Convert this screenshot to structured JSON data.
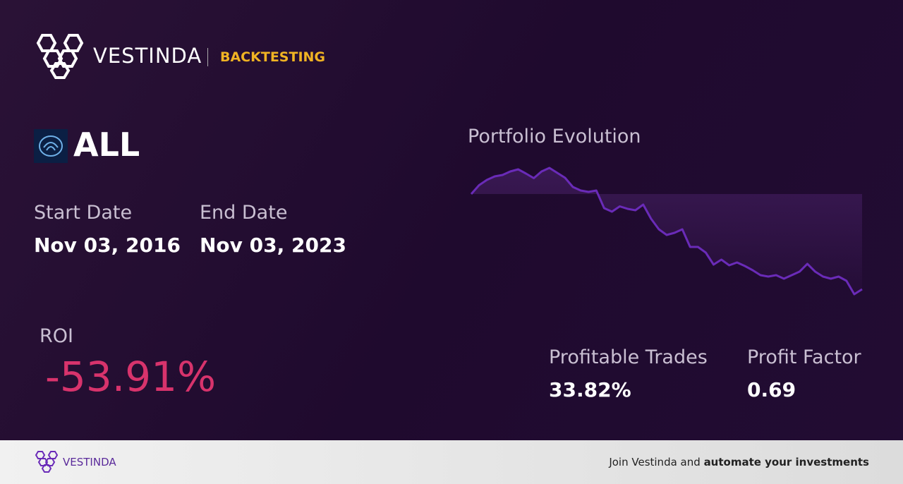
{
  "header": {
    "brand": "VESTINDA",
    "section": "BACKTESTING"
  },
  "ticker": "ALL",
  "start_date": {
    "label": "Start Date",
    "value": "Nov 03, 2016"
  },
  "end_date": {
    "label": "End Date",
    "value": "Nov 03, 2023"
  },
  "roi": {
    "label": "ROI",
    "value": "-53.91%"
  },
  "profitable_trades": {
    "label": "Profitable Trades",
    "value": "33.82%"
  },
  "profit_factor": {
    "label": "Profit Factor",
    "value": "0.69"
  },
  "chart_data": {
    "type": "line",
    "title": "Portfolio Evolution",
    "color": "#6a2bb8",
    "values": [
      100,
      105,
      108,
      110,
      110.8,
      112.8,
      114,
      111.6,
      109,
      112.8,
      114.8,
      112,
      109.2,
      104,
      102,
      101.2,
      102,
      92,
      90,
      93,
      91.6,
      90.8,
      94,
      86,
      80,
      76.8,
      78,
      80,
      70,
      70,
      66.8,
      60,
      62.8,
      59.6,
      61.2,
      59.2,
      56.8,
      54,
      53.2,
      54,
      52,
      54,
      56,
      60.4,
      56,
      53.2,
      52,
      53.2,
      50.8,
      43.2,
      46
    ]
  },
  "footer": {
    "brand": "VESTINDA",
    "text": "Join Vestinda and",
    "bold": "automate your investments"
  }
}
